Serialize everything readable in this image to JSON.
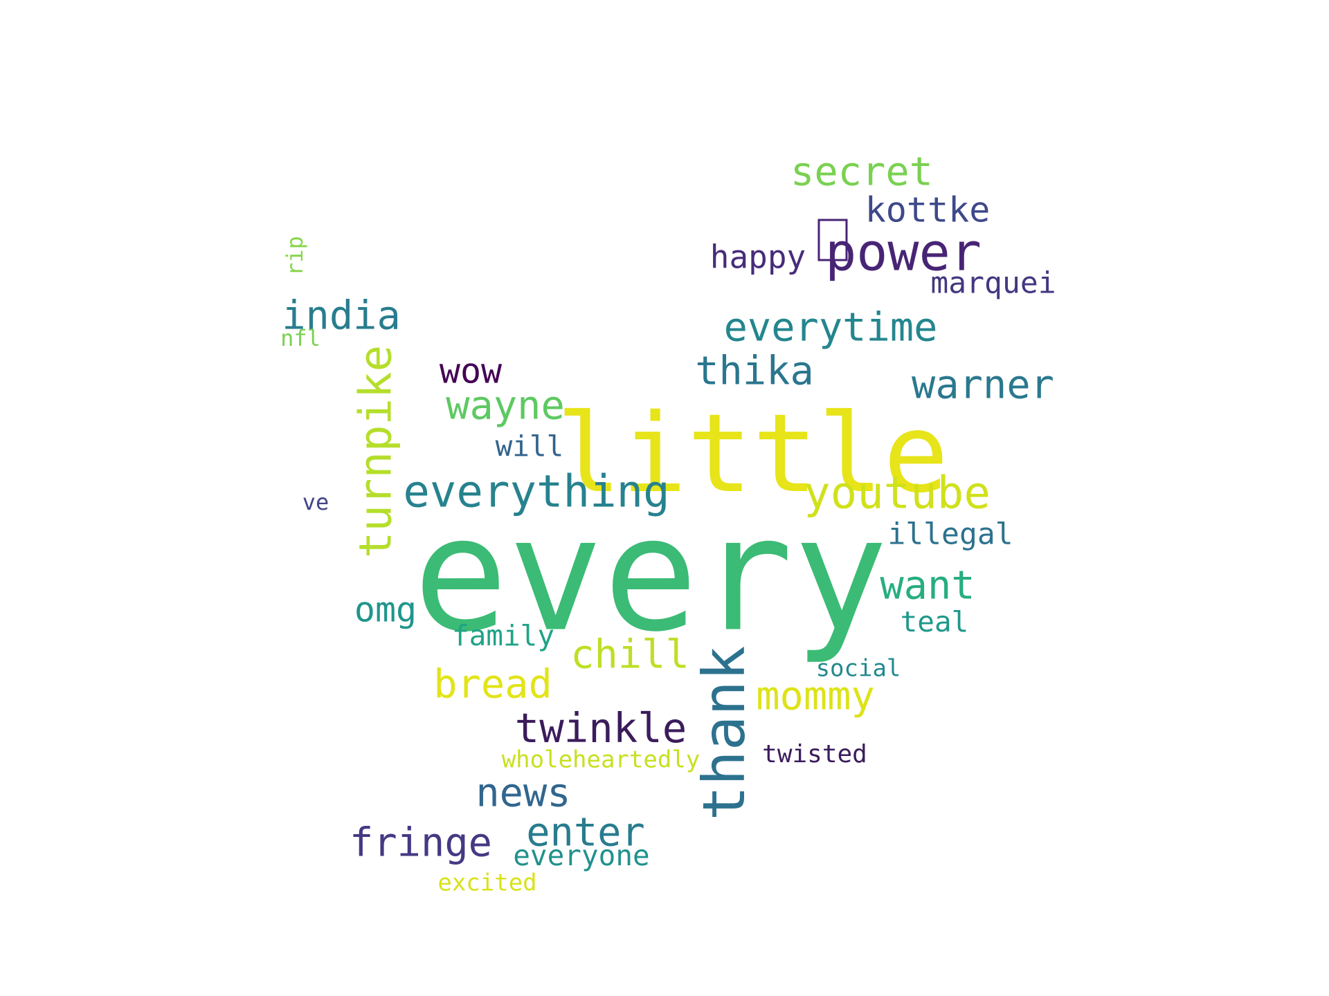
{
  "chart_data": {
    "type": "wordcloud",
    "colormap": "viridis",
    "background": "#ffffff",
    "words": [
      {
        "text": "every",
        "weight": 1.0,
        "color": "#3bbb75",
        "orientation": "horizontal"
      },
      {
        "text": "little",
        "weight": 0.69,
        "color": "#e7e419",
        "orientation": "horizontal"
      },
      {
        "text": "thank",
        "weight": 0.37,
        "color": "#2c728e",
        "orientation": "vertical"
      },
      {
        "text": "power",
        "weight": 0.33,
        "color": "#482475",
        "orientation": "horizontal"
      },
      {
        "text": "turnpike",
        "weight": 0.28,
        "color": "#b5de2b",
        "orientation": "vertical"
      },
      {
        "text": "everything",
        "weight": 0.28,
        "color": "#26828e",
        "orientation": "horizontal"
      },
      {
        "text": "youtube",
        "weight": 0.28,
        "color": "#d0e11c",
        "orientation": "horizontal"
      },
      {
        "text": "twinkle",
        "weight": 0.26,
        "color": "#3b1c5b",
        "orientation": "horizontal"
      },
      {
        "text": "india",
        "weight": 0.25,
        "color": "#287d8e",
        "orientation": "horizontal"
      },
      {
        "text": "secret",
        "weight": 0.25,
        "color": "#7ad151",
        "orientation": "horizontal"
      },
      {
        "text": "everytime",
        "weight": 0.25,
        "color": "#24868e",
        "orientation": "horizontal"
      },
      {
        "text": "thika",
        "weight": 0.25,
        "color": "#2a768e",
        "orientation": "horizontal"
      },
      {
        "text": "warner",
        "weight": 0.25,
        "color": "#2a788e",
        "orientation": "horizontal"
      },
      {
        "text": "want",
        "weight": 0.25,
        "color": "#27ad81",
        "orientation": "horizontal"
      },
      {
        "text": "bread",
        "weight": 0.25,
        "color": "#e2e418",
        "orientation": "horizontal"
      },
      {
        "text": "chill",
        "weight": 0.25,
        "color": "#bddf26",
        "orientation": "horizontal"
      },
      {
        "text": "mommy",
        "weight": 0.25,
        "color": "#dde318",
        "orientation": "horizontal"
      },
      {
        "text": "news",
        "weight": 0.25,
        "color": "#31668e",
        "orientation": "horizontal"
      },
      {
        "text": "fringe",
        "weight": 0.25,
        "color": "#443983",
        "orientation": "horizontal"
      },
      {
        "text": "enter",
        "weight": 0.25,
        "color": "#287c8e",
        "orientation": "horizontal"
      },
      {
        "text": "wayne",
        "weight": 0.25,
        "color": "#5ec962",
        "orientation": "horizontal"
      },
      {
        "text": "kottke",
        "weight": 0.22,
        "color": "#3e4989",
        "orientation": "horizontal"
      },
      {
        "text": "wow",
        "weight": 0.22,
        "color": "#440154",
        "orientation": "horizontal"
      },
      {
        "text": "omg",
        "weight": 0.22,
        "color": "#1f968b",
        "orientation": "horizontal"
      },
      {
        "text": "happy",
        "weight": 0.2,
        "color": "#472c7a",
        "orientation": "horizontal"
      },
      {
        "text": "marquei",
        "weight": 0.19,
        "color": "#453781",
        "orientation": "horizontal"
      },
      {
        "text": "illegal",
        "weight": 0.19,
        "color": "#2c728e",
        "orientation": "horizontal"
      },
      {
        "text": "will",
        "weight": 0.18,
        "color": "#33638d",
        "orientation": "horizontal"
      },
      {
        "text": "family",
        "weight": 0.18,
        "color": "#20a386",
        "orientation": "horizontal"
      },
      {
        "text": "teal",
        "weight": 0.18,
        "color": "#1f988b",
        "orientation": "horizontal"
      },
      {
        "text": "everyone",
        "weight": 0.18,
        "color": "#21918c",
        "orientation": "horizontal"
      },
      {
        "text": "twisted",
        "weight": 0.16,
        "color": "#3b1c5b",
        "orientation": "horizontal"
      },
      {
        "text": "excited",
        "weight": 0.15,
        "color": "#d8e219",
        "orientation": "horizontal"
      },
      {
        "text": "social",
        "weight": 0.15,
        "color": "#23898e",
        "orientation": "horizontal"
      },
      {
        "text": "wholeheartedly",
        "weight": 0.15,
        "color": "#c8e020",
        "orientation": "horizontal"
      },
      {
        "text": "nfl",
        "weight": 0.14,
        "color": "#7ad151",
        "orientation": "horizontal"
      },
      {
        "text": "ve",
        "weight": 0.14,
        "color": "#414487",
        "orientation": "horizontal"
      },
      {
        "text": "rip",
        "weight": 0.14,
        "color": "#86d549",
        "orientation": "vertical"
      }
    ]
  }
}
